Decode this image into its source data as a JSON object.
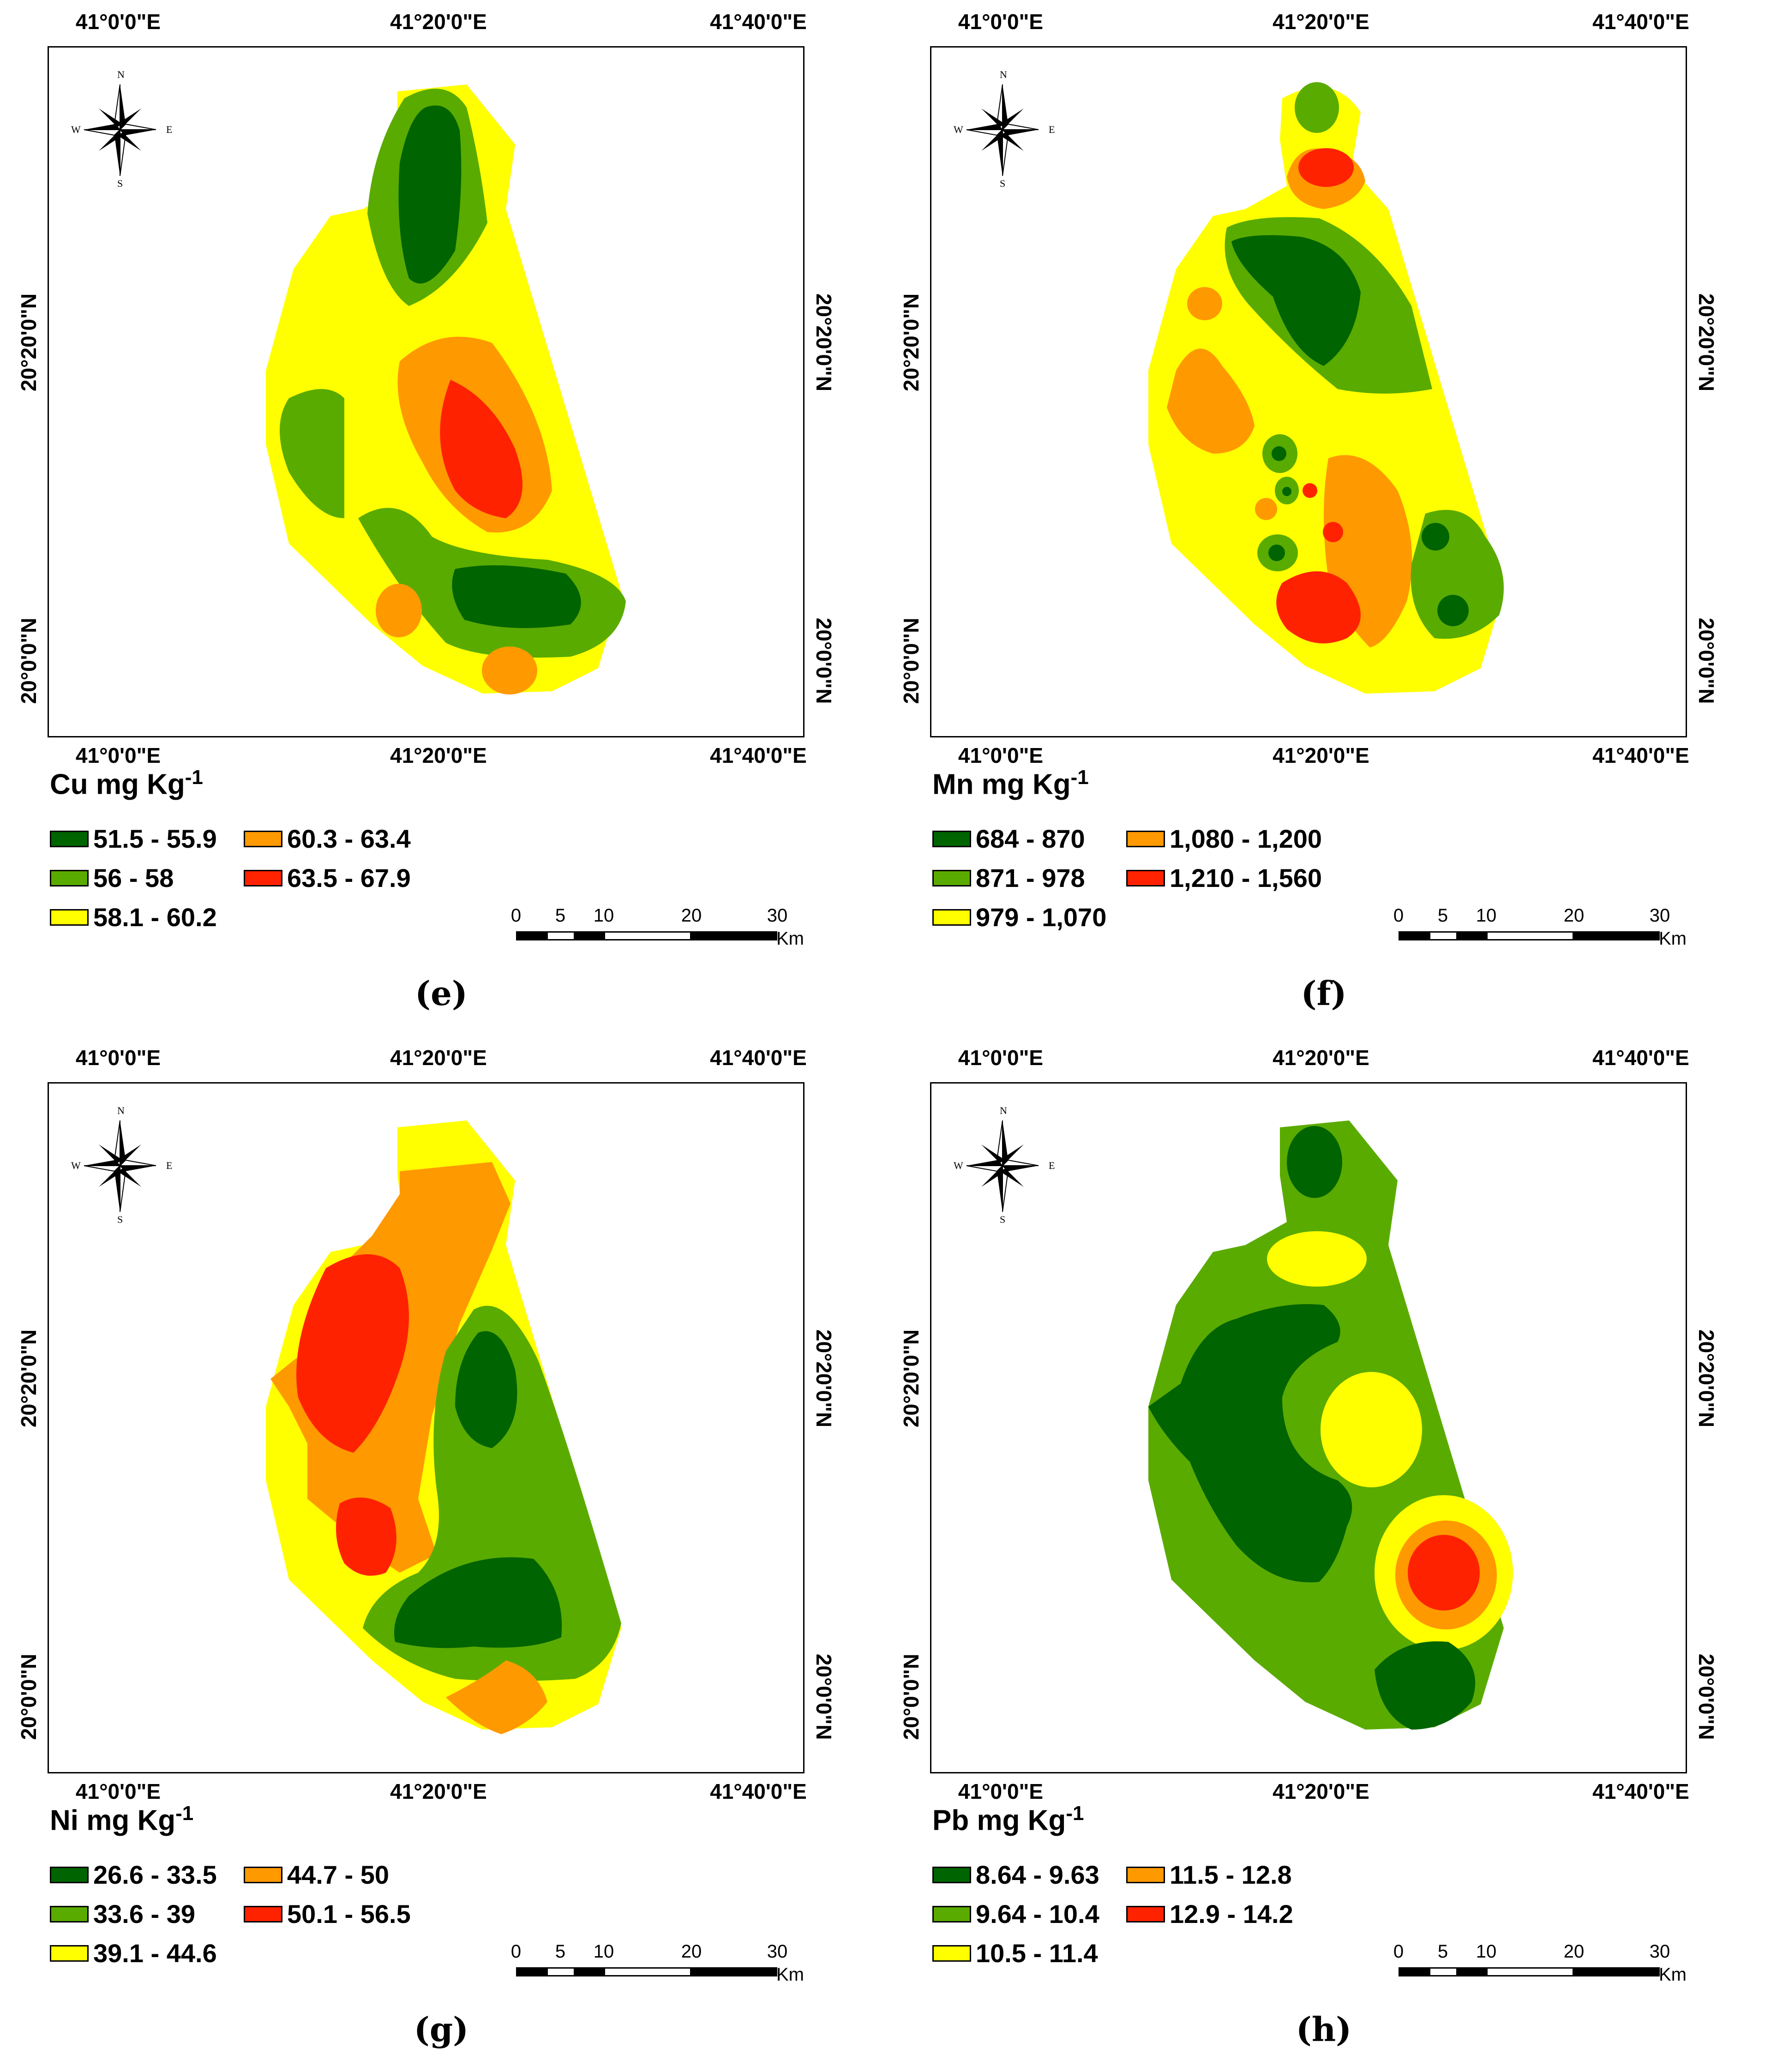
{
  "axes": {
    "lon_labels": [
      "41°0'0\"E",
      "41°20'0\"E",
      "41°40'0\"E"
    ],
    "lat_labels": [
      "20°20'0\"N",
      "20°0'0\"N"
    ]
  },
  "compass": {
    "n": "N",
    "s": "S",
    "e": "E",
    "w": "W"
  },
  "scale": {
    "ticks": [
      "0",
      "5",
      "10",
      "20",
      "30"
    ],
    "unit": "Km"
  },
  "colors": {
    "class1": "#006400",
    "class2": "#5aab00",
    "class3": "#ffff00",
    "class4": "#ff9900",
    "class5": "#ff2200"
  },
  "panels": [
    {
      "caption": "(e)",
      "title": "Cu mg Kg",
      "superscript": "-1",
      "legend": [
        "51.5 - 55.9",
        "56 - 58",
        "58.1 - 60.2",
        "60.3 - 63.4",
        "63.5 - 67.9"
      ]
    },
    {
      "caption": "(f)",
      "title": "Mn mg Kg",
      "superscript": "-1",
      "legend": [
        "684 - 870",
        "871 - 978",
        "979 - 1,070",
        "1,080 - 1,200",
        "1,210 - 1,560"
      ]
    },
    {
      "caption": "(g)",
      "title": "Ni mg Kg",
      "superscript": "-1",
      "legend": [
        "26.6 - 33.5",
        "33.6 - 39",
        "39.1 - 44.6",
        "44.7 - 50",
        "50.1 - 56.5"
      ]
    },
    {
      "caption": "(h)",
      "title": "Pb mg Kg",
      "superscript": "-1",
      "legend": [
        "8.64 - 9.63",
        "9.64 - 10.4",
        "10.5 - 11.4",
        "11.5 - 12.8",
        "12.9 - 14.2"
      ]
    }
  ]
}
